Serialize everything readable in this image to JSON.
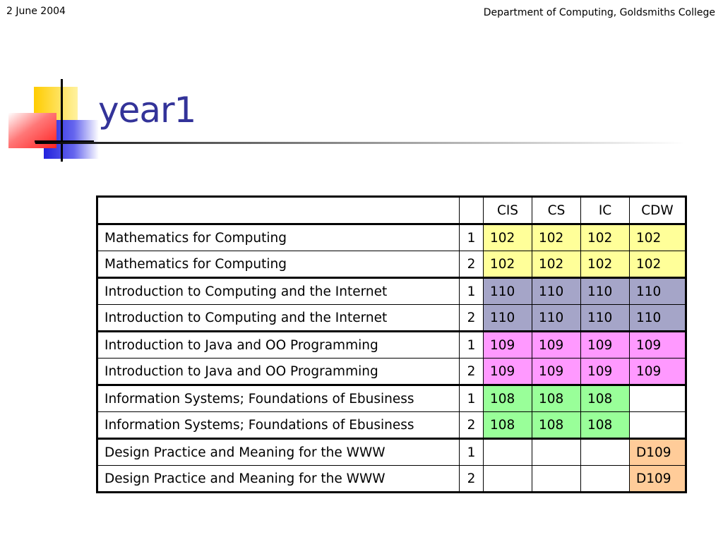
{
  "header": {
    "date": "2 June 2004",
    "department": "Department of Computing, Goldsmiths College"
  },
  "slide": {
    "title": "year1",
    "title_color": "#333399"
  },
  "table": {
    "columns": [
      "",
      "",
      "CIS",
      "CS",
      "IC",
      "CDW"
    ],
    "rows": [
      {
        "module": "Mathematics for Computing",
        "semester": "1",
        "cis": "102",
        "cs": "102",
        "ic": "102",
        "cdw": "102"
      },
      {
        "module": "Mathematics for Computing",
        "semester": "2",
        "cis": "102",
        "cs": "102",
        "ic": "102",
        "cdw": "102"
      },
      {
        "module": "Introduction to Computing and the Internet",
        "semester": "1",
        "cis": "110",
        "cs": "110",
        "ic": "110",
        "cdw": "110"
      },
      {
        "module": "Introduction to Computing and the Internet",
        "semester": "2",
        "cis": "110",
        "cs": "110",
        "ic": "110",
        "cdw": "110"
      },
      {
        "module": "Introduction to Java and OO Programming",
        "semester": "1",
        "cis": "109",
        "cs": "109",
        "ic": "109",
        "cdw": "109"
      },
      {
        "module": "Introduction to Java and OO Programming",
        "semester": "2",
        "cis": "109",
        "cs": "109",
        "ic": "109",
        "cdw": "109"
      },
      {
        "module": "Information Systems; Foundations of Ebusiness",
        "semester": "1",
        "cis": "108",
        "cs": "108",
        "ic": "108",
        "cdw": ""
      },
      {
        "module": "Information Systems; Foundations of Ebusiness",
        "semester": "2",
        "cis": "108",
        "cs": "108",
        "ic": "108",
        "cdw": ""
      },
      {
        "module": "Design Practice and Meaning for the WWW",
        "semester": "1",
        "cis": "",
        "cs": "",
        "ic": "",
        "cdw": "D109"
      },
      {
        "module": "Design Practice and Meaning for the WWW",
        "semester": "2",
        "cis": "",
        "cs": "",
        "ic": "",
        "cdw": "D109"
      }
    ],
    "colors": {
      "mathematics": "#ffff99",
      "computing_internet": "#a5a5c8",
      "java": "#ff99ff",
      "information_systems": "#99ff99",
      "design_www": "#ffcc99"
    }
  }
}
